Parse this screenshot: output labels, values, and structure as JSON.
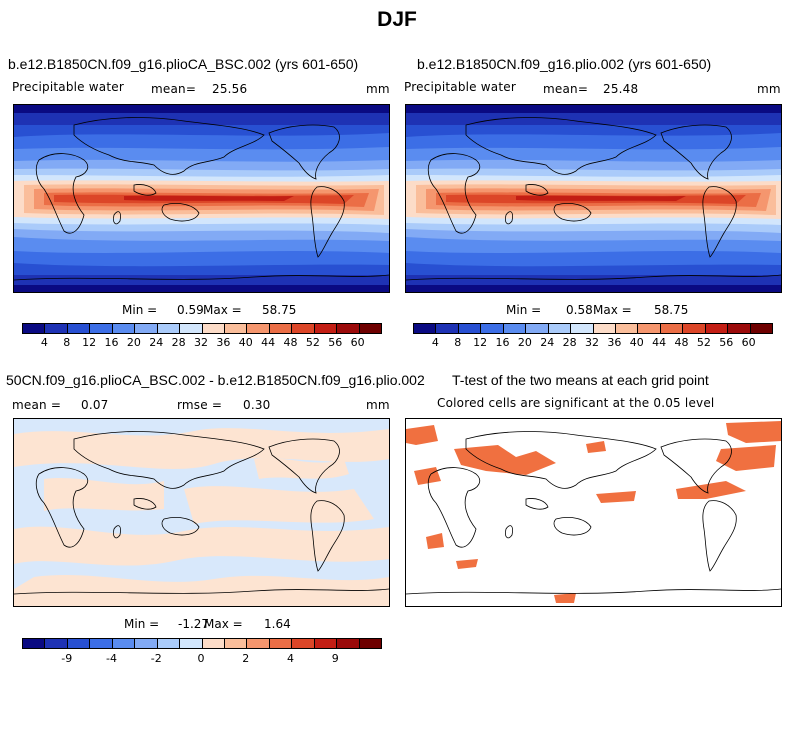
{
  "figure_title": "DJF",
  "colors": {
    "full_scale": [
      "#0a0a82",
      "#1e32b4",
      "#2850d2",
      "#3c6ee6",
      "#5a8cf0",
      "#82aaf5",
      "#aacbfa",
      "#d2e6fc",
      "#fcdcc8",
      "#fabe9b",
      "#f5966e",
      "#eb6e46",
      "#dc4628",
      "#c31e14",
      "#9b0a0a",
      "#6e0000"
    ],
    "diff_scale": [
      "#0a0a82",
      "#1e32b4",
      "#2850d2",
      "#3c6ee6",
      "#5a8cf0",
      "#82aaf5",
      "#aacbfa",
      "#d2e6fc",
      "#fcdcc8",
      "#fabe9b",
      "#f5966e",
      "#eb6e46",
      "#dc4628",
      "#c31e14",
      "#9b0a0a",
      "#6e0000"
    ],
    "significant": "#f07040"
  },
  "chart_data": [
    {
      "type": "heatmap",
      "panel": "top-left",
      "title": "b.e12.B1850CN.f09_g16.plioCA_BSC.002 (yrs 601-650)",
      "variable": "Precipitable water",
      "mean_label": "mean=",
      "mean": "25.56",
      "units": "mm",
      "min_label": "Min =",
      "min": "0.59",
      "max_label": "Max =",
      "max": "58.75",
      "colorbar_ticks": [
        "4",
        "8",
        "12",
        "16",
        "20",
        "24",
        "28",
        "32",
        "36",
        "40",
        "44",
        "48",
        "52",
        "56",
        "60"
      ]
    },
    {
      "type": "heatmap",
      "panel": "top-right",
      "title": "b.e12.B1850CN.f09_g16.plio.002 (yrs 601-650)",
      "variable": "Precipitable water",
      "mean_label": "mean=",
      "mean": "25.48",
      "units": "mm",
      "min_label": "Min =",
      "min": "0.58",
      "max_label": "Max =",
      "max": "58.75",
      "colorbar_ticks": [
        "4",
        "8",
        "12",
        "16",
        "20",
        "24",
        "28",
        "32",
        "36",
        "40",
        "44",
        "48",
        "52",
        "56",
        "60"
      ]
    },
    {
      "type": "heatmap",
      "panel": "bottom-left",
      "title": "50CN.f09_g16.plioCA_BSC.002 - b.e12.B1850CN.f09_g16.plio.002",
      "mean_label": "mean =",
      "mean": "0.07",
      "rmse_label": "rmse =",
      "rmse": "0.30",
      "units": "mm",
      "min_label": "Min =",
      "min": "-1.27",
      "max_label": "Max =",
      "max": "1.64",
      "colorbar_ticks": [
        "-9",
        "-4",
        "-2",
        "0",
        "2",
        "4",
        "9"
      ]
    },
    {
      "type": "heatmap",
      "panel": "bottom-right",
      "title": "T-test of the two means at each grid point",
      "subtitle": "Colored cells are significant at the 0.05 level"
    }
  ]
}
